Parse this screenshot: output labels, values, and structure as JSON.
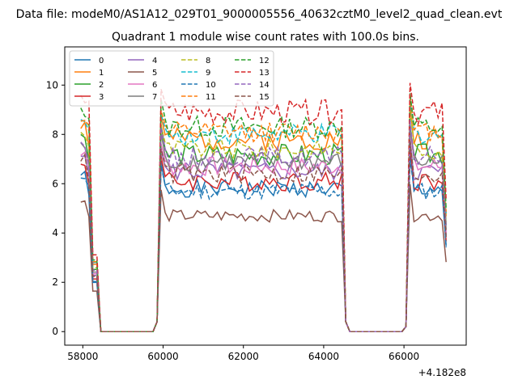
{
  "figure": {
    "suptitle": "Data file: modeM0/AS1A12_029T01_9000005556_40632cztM0_level2_quad_clean.evt"
  },
  "chart_data": {
    "type": "line",
    "title": "Quadrant 1 module wise count rates with 100.0s bins.",
    "xlabel": "",
    "ylabel": "",
    "x_offset_label": "+4.182e8",
    "xlim": [
      57550,
      67550
    ],
    "ylim": [
      -0.55,
      11.55
    ],
    "x_ticks": [
      58000,
      60000,
      62000,
      64000,
      66000
    ],
    "x_tick_labels": [
      "58000",
      "60000",
      "62000",
      "64000",
      "66000"
    ],
    "y_ticks": [
      0,
      2,
      4,
      6,
      8,
      10
    ],
    "y_tick_labels": [
      "0",
      "2",
      "4",
      "6",
      "8",
      "10"
    ],
    "legend_position": "upper-left",
    "legend_columns": 4,
    "segments": [
      {
        "start": 57950,
        "end": 58350,
        "gap_after": true
      },
      {
        "start": 59850,
        "end": 64550,
        "gap_after": true
      },
      {
        "start": 66050,
        "end": 67050,
        "gap_after": false
      }
    ],
    "series": [
      {
        "name": "0",
        "color": "#1f77b4",
        "dash": "solid",
        "level": 5.8,
        "noise": 0.35,
        "seed": 1
      },
      {
        "name": "1",
        "color": "#ff7f0e",
        "dash": "solid",
        "level": 7.8,
        "noise": 0.45,
        "seed": 2
      },
      {
        "name": "2",
        "color": "#2ca02c",
        "dash": "solid",
        "level": 7.2,
        "noise": 0.45,
        "seed": 3
      },
      {
        "name": "3",
        "color": "#d62728",
        "dash": "solid",
        "level": 6.1,
        "noise": 0.4,
        "seed": 4
      },
      {
        "name": "4",
        "color": "#9467bd",
        "dash": "solid",
        "level": 6.5,
        "noise": 0.4,
        "seed": 5
      },
      {
        "name": "5",
        "color": "#8c564b",
        "dash": "solid",
        "level": 4.7,
        "noise": 0.25,
        "seed": 6
      },
      {
        "name": "6",
        "color": "#e377c2",
        "dash": "solid",
        "level": 6.7,
        "noise": 0.4,
        "seed": 7
      },
      {
        "name": "7",
        "color": "#7f7f7f",
        "dash": "solid",
        "level": 6.9,
        "noise": 0.4,
        "seed": 8
      },
      {
        "name": "8",
        "color": "#bcbd22",
        "dash": "dashed",
        "level": 7.4,
        "noise": 0.4,
        "seed": 9
      },
      {
        "name": "9",
        "color": "#17becf",
        "dash": "dashed",
        "level": 8.0,
        "noise": 0.4,
        "seed": 10
      },
      {
        "name": "10",
        "color": "#1f77b4",
        "dash": "dashed",
        "level": 5.7,
        "noise": 0.35,
        "seed": 11
      },
      {
        "name": "11",
        "color": "#ff7f0e",
        "dash": "dashed",
        "level": 8.1,
        "noise": 0.4,
        "seed": 12
      },
      {
        "name": "12",
        "color": "#2ca02c",
        "dash": "dashed",
        "level": 8.3,
        "noise": 0.45,
        "seed": 13
      },
      {
        "name": "13",
        "color": "#d62728",
        "dash": "dashed",
        "level": 8.9,
        "noise": 0.5,
        "seed": 14
      },
      {
        "name": "14",
        "color": "#9467bd",
        "dash": "dashed",
        "level": 7.1,
        "noise": 0.4,
        "seed": 15
      },
      {
        "name": "15",
        "color": "#8c564b",
        "dash": "dashed",
        "level": 6.4,
        "noise": 0.4,
        "seed": 16
      }
    ]
  }
}
